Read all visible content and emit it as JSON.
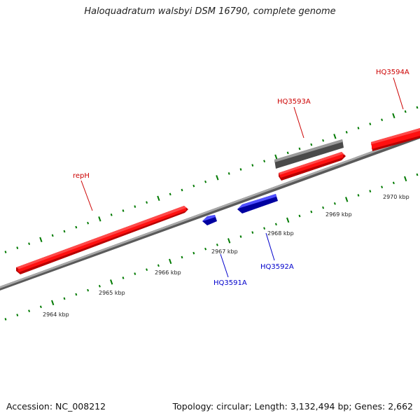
{
  "title": "Haloquadratum walsbyi DSM 16790, complete genome",
  "footer": {
    "accession": "Accession: NC_008212",
    "topology": "Topology: circular; Length: 3,132,494 bp; Genes: 2,662"
  },
  "colors": {
    "forward_gene": "#ff0000",
    "reverse_gene": "#0000ff",
    "other_feature": "#666666",
    "backbone": "#808080",
    "ticks": "#007a00",
    "forward_label": "#cc0000",
    "reverse_label": "#0000cc"
  },
  "scale": {
    "kbp_labels": [
      "2964 kbp",
      "2965 kbp",
      "2966 kbp",
      "2967 kbp",
      "2968 kbp",
      "2969 kbp",
      "2970 kbp"
    ]
  },
  "features": [
    {
      "name": "repH",
      "strand": "forward",
      "type": "gene",
      "label_color": "forward_label"
    },
    {
      "name": "HQ3593A",
      "strand": "forward",
      "type": "gene",
      "label_color": "forward_label"
    },
    {
      "name": "HQ3594A",
      "strand": "forward",
      "type": "gene",
      "label_color": "forward_label"
    },
    {
      "name": "HQ3591A",
      "strand": "reverse",
      "type": "gene",
      "label_color": "reverse_label"
    },
    {
      "name": "HQ3592A",
      "strand": "reverse",
      "type": "gene",
      "label_color": "reverse_label"
    },
    {
      "name": "",
      "strand": "forward",
      "type": "other"
    }
  ]
}
